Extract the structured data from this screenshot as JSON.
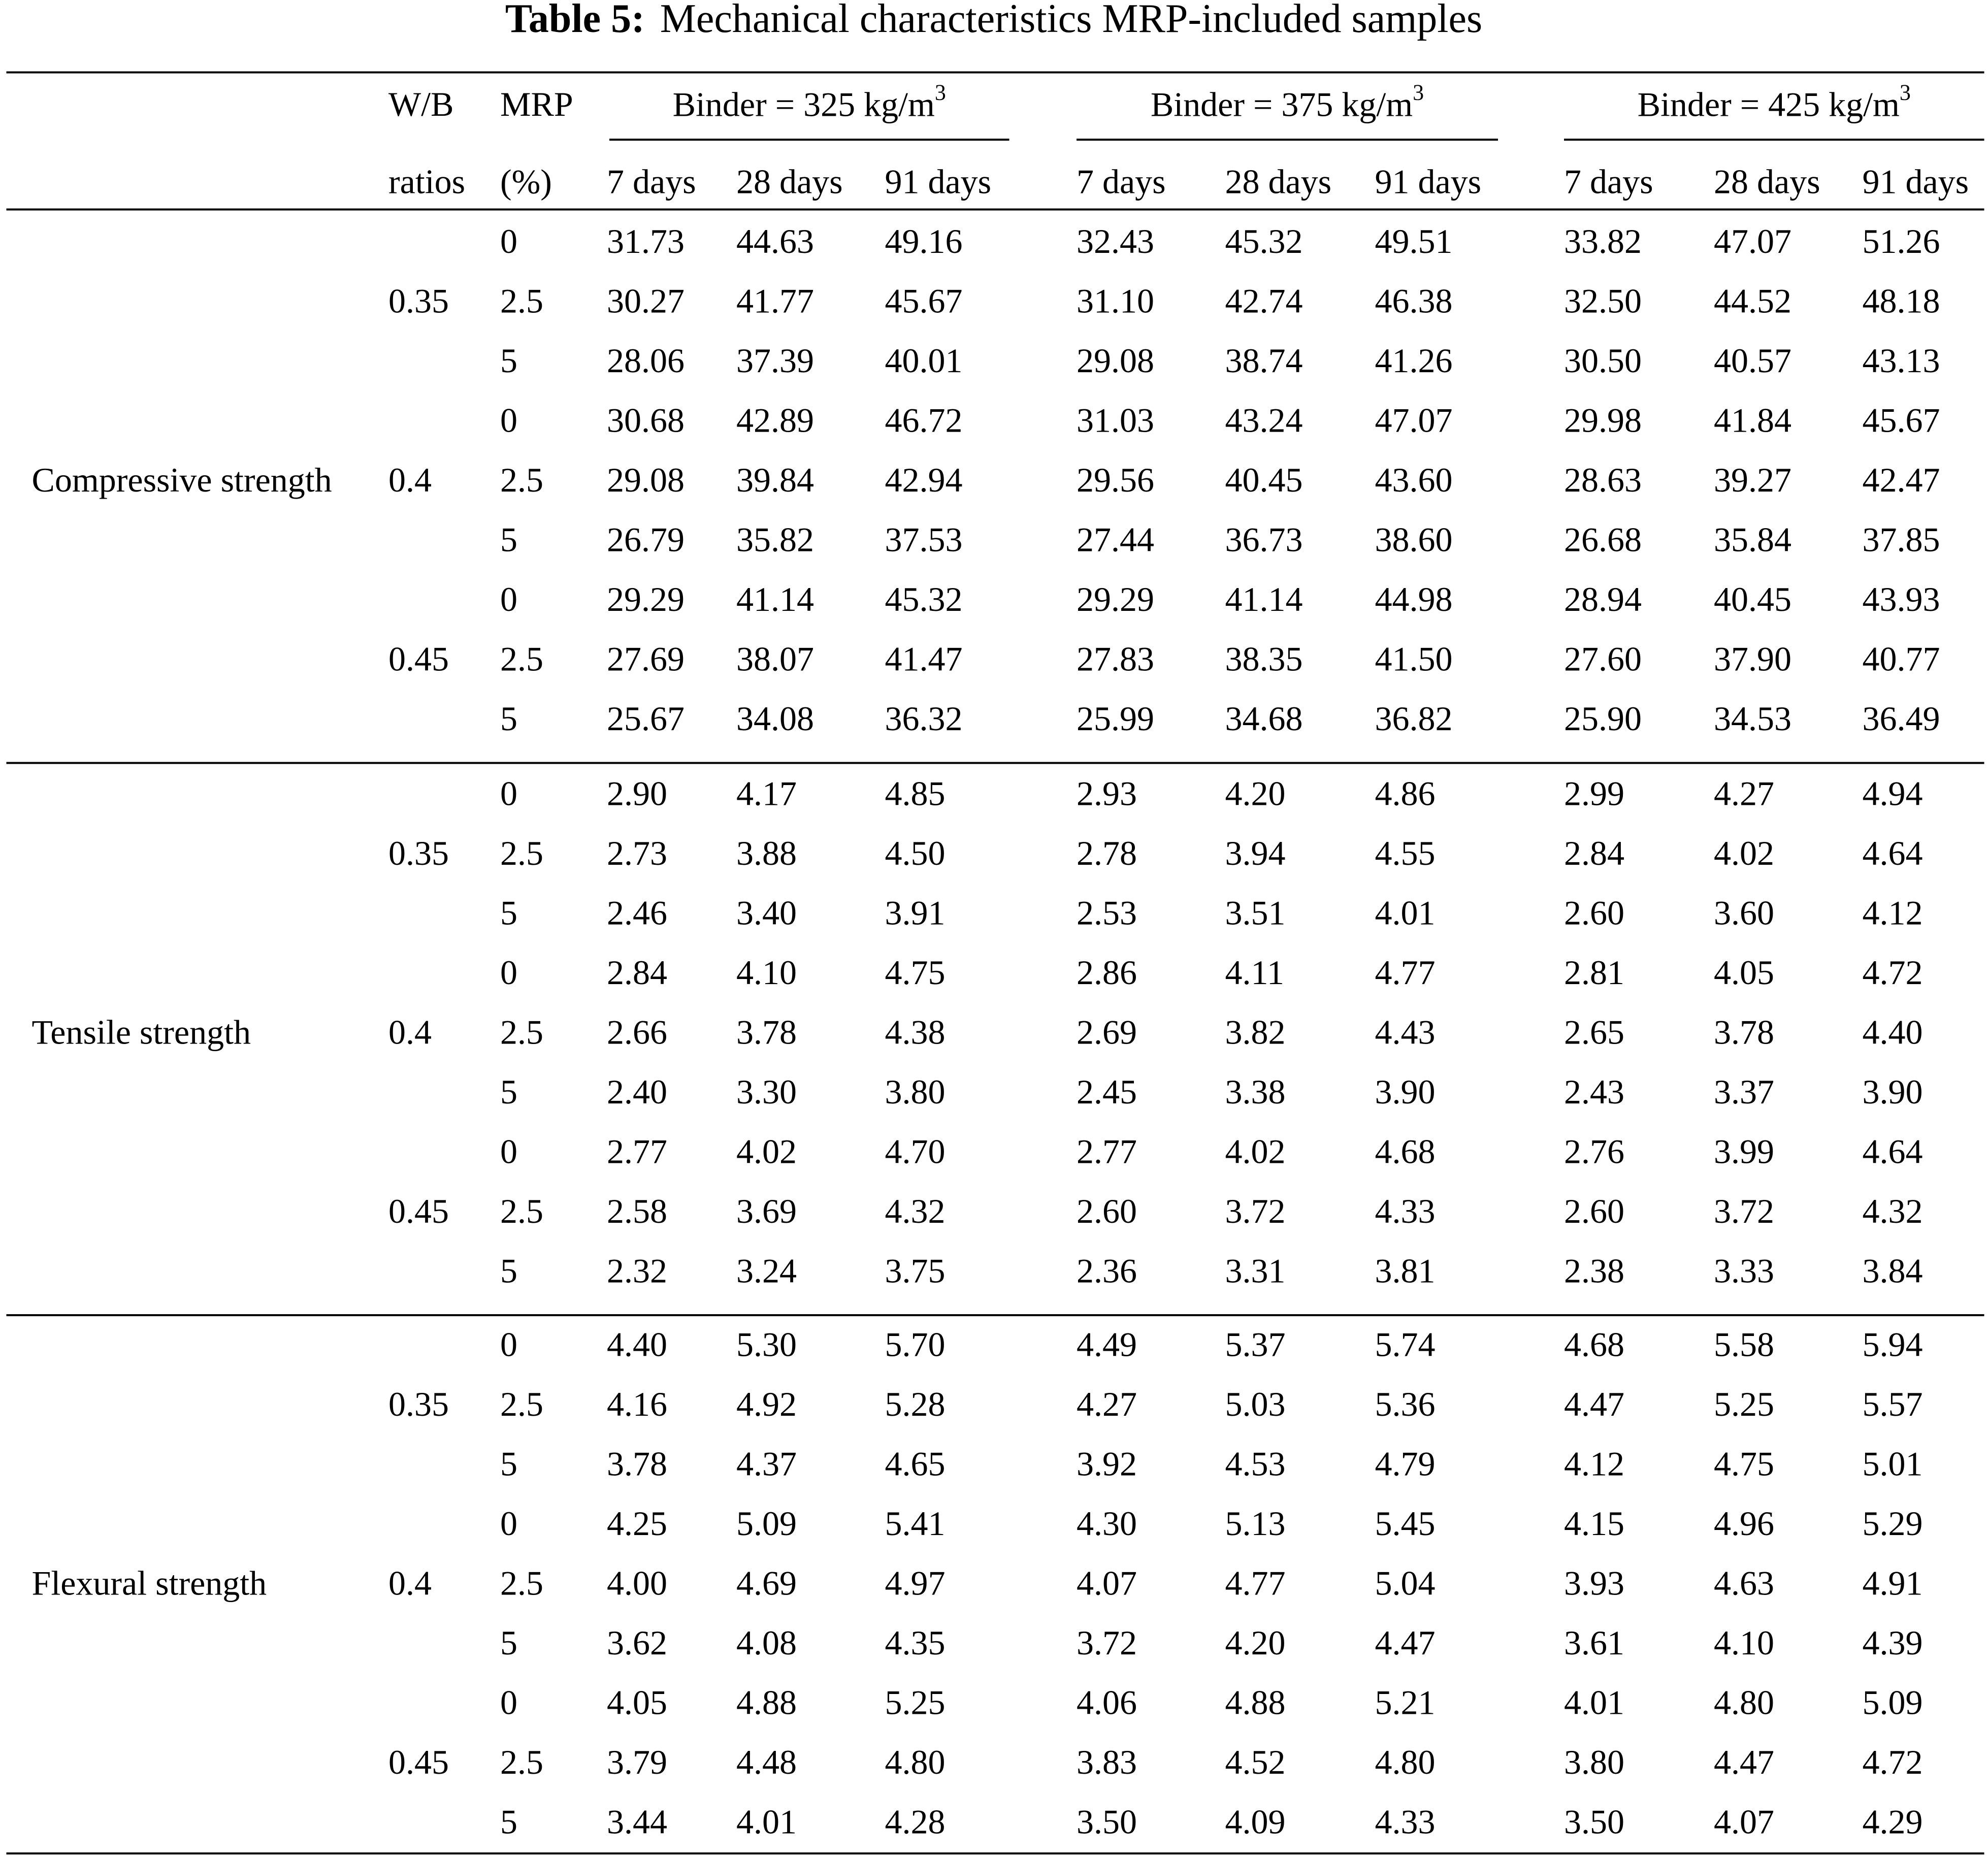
{
  "title": {
    "label": "Table 5:",
    "text": "Mechanical characteristics MRP-included samples"
  },
  "header": {
    "wb": [
      "W/B",
      "ratios"
    ],
    "mrp": [
      "MRP",
      "(%)"
    ],
    "binders": [
      {
        "text": "Binder = 325 kg/m",
        "sup": "3",
        "days": [
          "7 days",
          "28 days",
          "91 days"
        ]
      },
      {
        "text": "Binder = 375 kg/m",
        "sup": "3",
        "days": [
          "7 days",
          "28 days",
          "91 days"
        ]
      },
      {
        "text": "Binder = 425 kg/m",
        "sup": "3",
        "days": [
          "7 days",
          "28 days",
          "91 days"
        ]
      }
    ]
  },
  "groups": [
    {
      "property": "Compressive strength",
      "blocks": [
        {
          "wb": "0.35",
          "rows": [
            {
              "mrp": "0",
              "values": [
                "31.73",
                "44.63",
                "49.16",
                "32.43",
                "45.32",
                "49.51",
                "33.82",
                "47.07",
                "51.26"
              ]
            },
            {
              "mrp": "2.5",
              "values": [
                "30.27",
                "41.77",
                "45.67",
                "31.10",
                "42.74",
                "46.38",
                "32.50",
                "44.52",
                "48.18"
              ]
            },
            {
              "mrp": "5",
              "values": [
                "28.06",
                "37.39",
                "40.01",
                "29.08",
                "38.74",
                "41.26",
                "30.50",
                "40.57",
                "43.13"
              ]
            }
          ]
        },
        {
          "wb": "0.4",
          "rows": [
            {
              "mrp": "0",
              "values": [
                "30.68",
                "42.89",
                "46.72",
                "31.03",
                "43.24",
                "47.07",
                "29.98",
                "41.84",
                "45.67"
              ]
            },
            {
              "mrp": "2.5",
              "values": [
                "29.08",
                "39.84",
                "42.94",
                "29.56",
                "40.45",
                "43.60",
                "28.63",
                "39.27",
                "42.47"
              ]
            },
            {
              "mrp": "5",
              "values": [
                "26.79",
                "35.82",
                "37.53",
                "27.44",
                "36.73",
                "38.60",
                "26.68",
                "35.84",
                "37.85"
              ]
            }
          ]
        },
        {
          "wb": "0.45",
          "rows": [
            {
              "mrp": "0",
              "values": [
                "29.29",
                "41.14",
                "45.32",
                "29.29",
                "41.14",
                "44.98",
                "28.94",
                "40.45",
                "43.93"
              ]
            },
            {
              "mrp": "2.5",
              "values": [
                "27.69",
                "38.07",
                "41.47",
                "27.83",
                "38.35",
                "41.50",
                "27.60",
                "37.90",
                "40.77"
              ]
            },
            {
              "mrp": "5",
              "values": [
                "25.67",
                "34.08",
                "36.32",
                "25.99",
                "34.68",
                "36.82",
                "25.90",
                "34.53",
                "36.49"
              ]
            }
          ]
        }
      ]
    },
    {
      "property": "Tensile strength",
      "blocks": [
        {
          "wb": "0.35",
          "rows": [
            {
              "mrp": "0",
              "values": [
                "2.90",
                "4.17",
                "4.85",
                "2.93",
                "4.20",
                "4.86",
                "2.99",
                "4.27",
                "4.94"
              ]
            },
            {
              "mrp": "2.5",
              "values": [
                "2.73",
                "3.88",
                "4.50",
                "2.78",
                "3.94",
                "4.55",
                "2.84",
                "4.02",
                "4.64"
              ]
            },
            {
              "mrp": "5",
              "values": [
                "2.46",
                "3.40",
                "3.91",
                "2.53",
                "3.51",
                "4.01",
                "2.60",
                "3.60",
                "4.12"
              ]
            }
          ]
        },
        {
          "wb": "0.4",
          "rows": [
            {
              "mrp": "0",
              "values": [
                "2.84",
                "4.10",
                "4.75",
                "2.86",
                "4.11",
                "4.77",
                "2.81",
                "4.05",
                "4.72"
              ]
            },
            {
              "mrp": "2.5",
              "values": [
                "2.66",
                "3.78",
                "4.38",
                "2.69",
                "3.82",
                "4.43",
                "2.65",
                "3.78",
                "4.40"
              ]
            },
            {
              "mrp": "5",
              "values": [
                "2.40",
                "3.30",
                "3.80",
                "2.45",
                "3.38",
                "3.90",
                "2.43",
                "3.37",
                "3.90"
              ]
            }
          ]
        },
        {
          "wb": "0.45",
          "rows": [
            {
              "mrp": "0",
              "values": [
                "2.77",
                "4.02",
                "4.70",
                "2.77",
                "4.02",
                "4.68",
                "2.76",
                "3.99",
                "4.64"
              ]
            },
            {
              "mrp": "2.5",
              "values": [
                "2.58",
                "3.69",
                "4.32",
                "2.60",
                "3.72",
                "4.33",
                "2.60",
                "3.72",
                "4.32"
              ]
            },
            {
              "mrp": "5",
              "values": [
                "2.32",
                "3.24",
                "3.75",
                "2.36",
                "3.31",
                "3.81",
                "2.38",
                "3.33",
                "3.84"
              ]
            }
          ]
        }
      ]
    },
    {
      "property": "Flexural strength",
      "blocks": [
        {
          "wb": "0.35",
          "rows": [
            {
              "mrp": "0",
              "values": [
                "4.40",
                "5.30",
                "5.70",
                "4.49",
                "5.37",
                "5.74",
                "4.68",
                "5.58",
                "5.94"
              ]
            },
            {
              "mrp": "2.5",
              "values": [
                "4.16",
                "4.92",
                "5.28",
                "4.27",
                "5.03",
                "5.36",
                "4.47",
                "5.25",
                "5.57"
              ]
            },
            {
              "mrp": "5",
              "values": [
                "3.78",
                "4.37",
                "4.65",
                "3.92",
                "4.53",
                "4.79",
                "4.12",
                "4.75",
                "5.01"
              ]
            }
          ]
        },
        {
          "wb": "0.4",
          "rows": [
            {
              "mrp": "0",
              "values": [
                "4.25",
                "5.09",
                "5.41",
                "4.30",
                "5.13",
                "5.45",
                "4.15",
                "4.96",
                "5.29"
              ]
            },
            {
              "mrp": "2.5",
              "values": [
                "4.00",
                "4.69",
                "4.97",
                "4.07",
                "4.77",
                "5.04",
                "3.93",
                "4.63",
                "4.91"
              ]
            },
            {
              "mrp": "5",
              "values": [
                "3.62",
                "4.08",
                "4.35",
                "3.72",
                "4.20",
                "4.47",
                "3.61",
                "4.10",
                "4.39"
              ]
            }
          ]
        },
        {
          "wb": "0.45",
          "rows": [
            {
              "mrp": "0",
              "values": [
                "4.05",
                "4.88",
                "5.25",
                "4.06",
                "4.88",
                "5.21",
                "4.01",
                "4.80",
                "5.09"
              ]
            },
            {
              "mrp": "2.5",
              "values": [
                "3.79",
                "4.48",
                "4.80",
                "3.83",
                "4.52",
                "4.80",
                "3.80",
                "4.47",
                "4.72"
              ]
            },
            {
              "mrp": "5",
              "values": [
                "3.44",
                "4.01",
                "4.28",
                "3.50",
                "4.09",
                "4.33",
                "3.50",
                "4.07",
                "4.29"
              ]
            }
          ]
        }
      ]
    }
  ]
}
